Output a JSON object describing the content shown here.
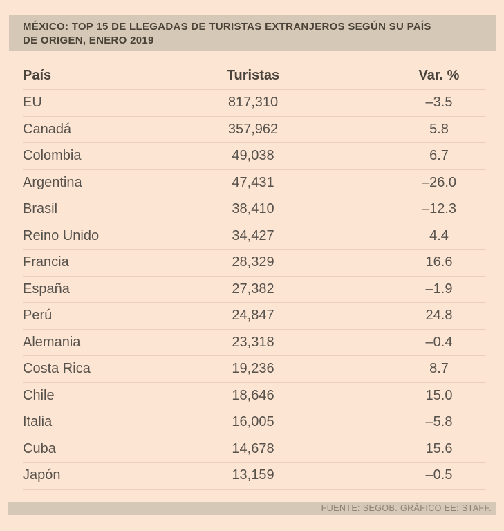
{
  "header": {
    "title_line1": "MÉXICO: TOP 15 DE LLEGADAS DE TURISTAS EXTRANJEROS SEGÚN SU PAÍS",
    "title_line2": "DE ORIGEN, ENERO 2019"
  },
  "table": {
    "columns": [
      "País",
      "Turistas",
      "Var. %"
    ],
    "rows": [
      {
        "pais": "EU",
        "turistas": "817,310",
        "var": "–3.5"
      },
      {
        "pais": "Canadá",
        "turistas": "357,962",
        "var": "5.8"
      },
      {
        "pais": "Colombia",
        "turistas": "49,038",
        "var": "6.7"
      },
      {
        "pais": "Argentina",
        "turistas": "47,431",
        "var": "–26.0"
      },
      {
        "pais": "Brasil",
        "turistas": "38,410",
        "var": "–12.3"
      },
      {
        "pais": "Reino Unido",
        "turistas": "34,427",
        "var": "4.4"
      },
      {
        "pais": "Francia",
        "turistas": "28,329",
        "var": "16.6"
      },
      {
        "pais": "España",
        "turistas": "27,382",
        "var": "–1.9"
      },
      {
        "pais": "Perú",
        "turistas": "24,847",
        "var": "24.8"
      },
      {
        "pais": "Alemania",
        "turistas": "23,318",
        "var": "–0.4"
      },
      {
        "pais": "Costa Rica",
        "turistas": "19,236",
        "var": "8.7"
      },
      {
        "pais": "Chile",
        "turistas": "18,646",
        "var": "15.0"
      },
      {
        "pais": "Italia",
        "turistas": "16,005",
        "var": "–5.8"
      },
      {
        "pais": "Cuba",
        "turistas": "14,678",
        "var": "15.6"
      },
      {
        "pais": "Japón",
        "turistas": "13,159",
        "var": "–0.5"
      }
    ]
  },
  "footer": {
    "source": "FUENTE: SEGOB. GRÁFICO EE: STAFF."
  },
  "colors": {
    "background": "#fce5d3",
    "panel": "#d5c8b6",
    "title_text": "#4a4237",
    "body_text": "#57514b",
    "divider": "#e9cfbc",
    "footer_text": "#8e8275"
  },
  "chart_data": {
    "type": "table",
    "title": "MÉXICO: TOP 15 DE LLEGADAS DE TURISTAS EXTRANJEROS SEGÚN SU PAÍS DE ORIGEN, ENERO 2019",
    "columns": [
      "País",
      "Turistas",
      "Var. %"
    ],
    "rows": [
      [
        "EU",
        817310,
        -3.5
      ],
      [
        "Canadá",
        357962,
        5.8
      ],
      [
        "Colombia",
        49038,
        6.7
      ],
      [
        "Argentina",
        47431,
        -26.0
      ],
      [
        "Brasil",
        38410,
        -12.3
      ],
      [
        "Reino Unido",
        34427,
        4.4
      ],
      [
        "Francia",
        28329,
        16.6
      ],
      [
        "España",
        27382,
        -1.9
      ],
      [
        "Perú",
        24847,
        24.8
      ],
      [
        "Alemania",
        23318,
        -0.4
      ],
      [
        "Costa Rica",
        19236,
        8.7
      ],
      [
        "Chile",
        18646,
        15.0
      ],
      [
        "Italia",
        16005,
        -5.8
      ],
      [
        "Cuba",
        14678,
        15.6
      ],
      [
        "Japón",
        13159,
        -0.5
      ]
    ],
    "source": "FUENTE: SEGOB. GRÁFICO EE: STAFF."
  }
}
